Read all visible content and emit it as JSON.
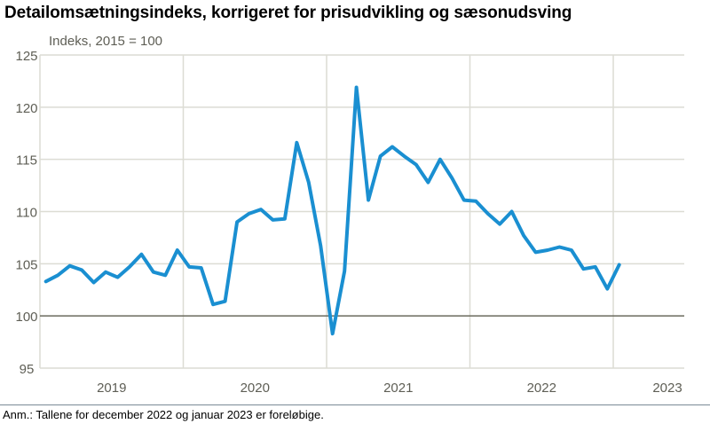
{
  "title": "Detailomsætningsindeks, korrigeret for prisudvikling og sæsonudsving",
  "footnote": "Anm.: Tallene for december 2022 og januar 2023 er foreløbige.",
  "colors": {
    "line": "#1a8fd1",
    "grid": "#dcdcd4",
    "baseline": "#6b6b5e",
    "text": "#5e5e55"
  },
  "chart_data": {
    "type": "line",
    "title": "Detailomsætningsindeks, korrigeret for prisudvikling og sæsonudsving",
    "ylabel": "Indeks, 2015 = 100",
    "xlabel": "",
    "ylim": [
      95,
      125
    ],
    "yticks": [
      95,
      100,
      105,
      110,
      115,
      120,
      125
    ],
    "xticks": [
      "2019",
      "2020",
      "2021",
      "2022",
      "2023"
    ],
    "grid": true,
    "legend": "none",
    "frequency": "monthly",
    "start": "2019-01",
    "series": [
      {
        "name": "Detailomsætningsindeks",
        "x": [
          "2019-01",
          "2019-02",
          "2019-03",
          "2019-04",
          "2019-05",
          "2019-06",
          "2019-07",
          "2019-08",
          "2019-09",
          "2019-10",
          "2019-11",
          "2019-12",
          "2020-01",
          "2020-02",
          "2020-03",
          "2020-04",
          "2020-05",
          "2020-06",
          "2020-07",
          "2020-08",
          "2020-09",
          "2020-10",
          "2020-11",
          "2020-12",
          "2021-01",
          "2021-02",
          "2021-03",
          "2021-04",
          "2021-05",
          "2021-06",
          "2021-07",
          "2021-08",
          "2021-09",
          "2021-10",
          "2021-11",
          "2021-12",
          "2022-01",
          "2022-02",
          "2022-03",
          "2022-04",
          "2022-05",
          "2022-06",
          "2022-07",
          "2022-08",
          "2022-09",
          "2022-10",
          "2022-11",
          "2022-12",
          "2023-01"
        ],
        "values": [
          103.3,
          103.9,
          104.8,
          104.4,
          103.2,
          104.2,
          103.7,
          104.7,
          105.9,
          104.2,
          103.9,
          106.3,
          104.7,
          104.6,
          101.1,
          101.4,
          109.0,
          109.8,
          110.2,
          109.2,
          109.3,
          116.6,
          112.8,
          106.7,
          98.3,
          104.3,
          121.9,
          111.1,
          115.3,
          116.2,
          115.3,
          114.5,
          112.8,
          115.0,
          113.2,
          111.1,
          111.0,
          109.8,
          108.8,
          110.0,
          107.7,
          106.1,
          106.3,
          106.6,
          106.3,
          104.5,
          104.7,
          102.6,
          104.9
        ]
      }
    ]
  }
}
